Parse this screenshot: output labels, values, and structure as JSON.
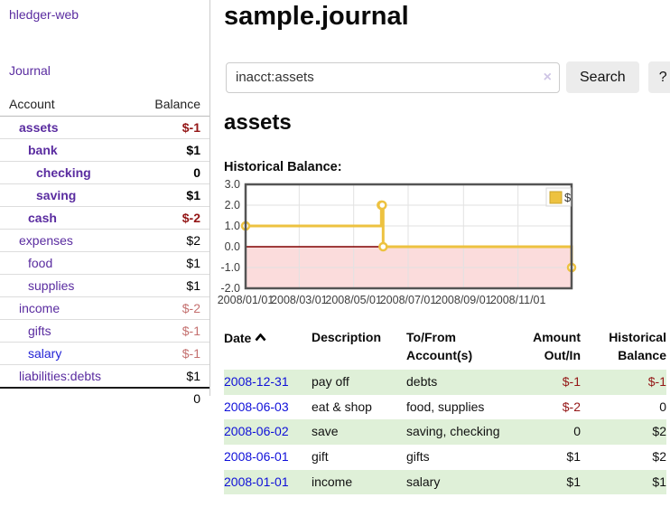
{
  "sidebar": {
    "brand": "hledger-web",
    "journal_link": "Journal",
    "accounts_table": {
      "col_account": "Account",
      "col_balance": "Balance",
      "rows": [
        {
          "name": "assets",
          "level": 1,
          "bold": true,
          "balance": "$-1",
          "balance_style": "neg-strong"
        },
        {
          "name": "bank",
          "level": 2,
          "bold": true,
          "balance": "$1",
          "balance_style": "normal"
        },
        {
          "name": "checking",
          "level": 3,
          "bold": true,
          "balance": "0",
          "balance_style": "normal"
        },
        {
          "name": "saving",
          "level": 3,
          "bold": true,
          "balance": "$1",
          "balance_style": "normal"
        },
        {
          "name": "cash",
          "level": 2,
          "bold": true,
          "balance": "$-2",
          "balance_style": "neg-strong"
        },
        {
          "name": "expenses",
          "level": 1,
          "bold": false,
          "balance": "$2",
          "balance_style": "normal"
        },
        {
          "name": "food",
          "level": 2,
          "bold": false,
          "balance": "$1",
          "balance_style": "normal"
        },
        {
          "name": "supplies",
          "level": 2,
          "bold": false,
          "balance": "$1",
          "balance_style": "normal"
        },
        {
          "name": "income",
          "level": 1,
          "bold": false,
          "balance": "$-2",
          "balance_style": "neg-light"
        },
        {
          "name": "gifts",
          "level": 2,
          "bold": false,
          "balance": "$-1",
          "balance_style": "neg-light"
        },
        {
          "name": "salary",
          "level": 2,
          "bold": false,
          "link_style": "unvisited",
          "balance": "$-1",
          "balance_style": "neg-light"
        },
        {
          "name": "liabilities:debts",
          "level": 1,
          "bold": false,
          "balance": "$1",
          "balance_style": "normal"
        }
      ],
      "total": "0"
    }
  },
  "header": {
    "title": "sample.journal"
  },
  "search": {
    "value": "inacct:assets",
    "clear_icon": "×",
    "search_label": "Search",
    "help_label": "?"
  },
  "account_view": {
    "heading": "assets",
    "chart_label": "Historical Balance:"
  },
  "chart_data": {
    "type": "line",
    "step": true,
    "title": "Historical Balance",
    "series": [
      {
        "name": "$",
        "color": "#edc240",
        "points": [
          [
            "2008-01-01",
            1
          ],
          [
            "2008-06-01",
            2
          ],
          [
            "2008-06-02",
            2
          ],
          [
            "2008-06-03",
            0
          ],
          [
            "2008-12-31",
            -1
          ]
        ]
      }
    ],
    "x_start": "2008-01-01",
    "x_end": "2008-12-31",
    "x_ticks": [
      {
        "date": "2008-01-01",
        "label": "2008/01/01"
      },
      {
        "date": "2008-03-01",
        "label": "2008/03/01"
      },
      {
        "date": "2008-05-01",
        "label": "2008/05/01"
      },
      {
        "date": "2008-07-01",
        "label": "2008/07/01"
      },
      {
        "date": "2008-09-01",
        "label": "2008/09/01"
      },
      {
        "date": "2008-11-01",
        "label": "2008/11/01"
      }
    ],
    "y_ticks": [
      3.0,
      2.0,
      1.0,
      0.0,
      -1.0,
      -2.0
    ],
    "ylim": [
      -2,
      3
    ],
    "grid": true,
    "legend": {
      "position": "top-right",
      "label": "$",
      "swatch_color": "#edc240"
    },
    "negative_region_color": "#fbdcdc",
    "zero_line_color": "#800000",
    "border_color": "#545454",
    "gridline_color": "#e2e2e2",
    "marker_style": "open-circle"
  },
  "register": {
    "columns": {
      "date": "Date",
      "description": "Description",
      "account": "To/From Account(s)",
      "amount": "Amount Out/In",
      "balance": "Historical Balance"
    },
    "sort": {
      "column": "date",
      "direction": "ascending",
      "icon": "chevron-up-icon"
    },
    "rows": [
      {
        "date": "2008-12-31",
        "description": "pay off",
        "account": "debts",
        "amount": "$-1",
        "amount_style": "neg",
        "balance": "$-1",
        "balance_style": "neg"
      },
      {
        "date": "2008-06-03",
        "description": "eat & shop",
        "account": "food, supplies",
        "amount": "$-2",
        "amount_style": "neg",
        "balance": "0",
        "balance_style": "normal"
      },
      {
        "date": "2008-06-02",
        "description": "save",
        "account": "saving, checking",
        "amount": "0",
        "amount_style": "normal",
        "balance": "$2",
        "balance_style": "normal"
      },
      {
        "date": "2008-06-01",
        "description": "gift",
        "account": "gifts",
        "amount": "$1",
        "amount_style": "normal",
        "balance": "$2",
        "balance_style": "normal"
      },
      {
        "date": "2008-01-01",
        "description": "income",
        "account": "salary",
        "amount": "$1",
        "amount_style": "normal",
        "balance": "$1",
        "balance_style": "normal"
      }
    ]
  },
  "colors": {
    "link_purple": "#5a2ca0",
    "link_blue": "#2323d6",
    "table_date_blue": "#0f0fd9",
    "negative_strong": "#941616",
    "negative_light": "#c4706f",
    "row_stripe_green": "#dff0d8",
    "chart_gold": "#edc240"
  }
}
